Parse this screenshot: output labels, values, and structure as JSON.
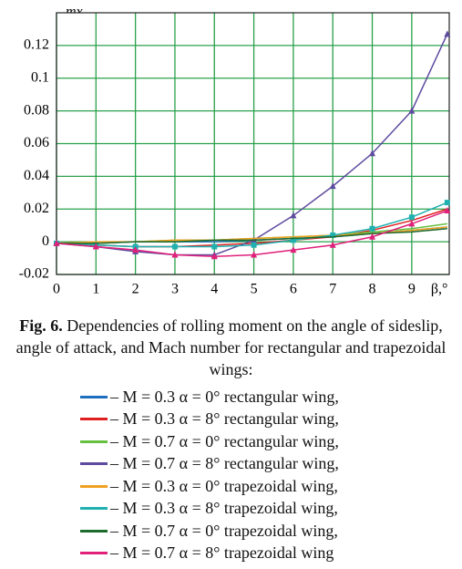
{
  "chart_data": {
    "type": "line",
    "y_label": "mx",
    "x_label": "β,°",
    "caption_label": "Fig. 6.",
    "caption": "Dependencies of rolling moment on the angle of sideslip, angle of attack, and Mach number for rectangular and trapezoidal wings:",
    "x": [
      0,
      1,
      2,
      3,
      4,
      5,
      6,
      7,
      8,
      9,
      9.9
    ],
    "xlim": [
      0,
      9.95
    ],
    "xticks": [
      0,
      1,
      2,
      3,
      4,
      5,
      6,
      7,
      8,
      9
    ],
    "ylim": [
      -0.02,
      0.14
    ],
    "yticks": [
      -0.02,
      0,
      0.02,
      0.04,
      0.06,
      0.08,
      0.1,
      0.12
    ],
    "grid": true,
    "grid_color": "#2aa04a",
    "series": [
      {
        "name": "– M = 0.3 α = 0° rectangular wing,",
        "color": "#1f6fbf",
        "values": [
          -0.001,
          -0.001,
          0,
          0,
          0,
          0.001,
          0.002,
          0.003,
          0.005,
          0.007,
          0.009
        ]
      },
      {
        "name": "– M = 0.3 α = 8° rectangular wing,",
        "color": "#e02020",
        "values": [
          -0.001,
          -0.002,
          -0.003,
          -0.003,
          -0.002,
          -0.001,
          0.001,
          0.003,
          0.007,
          0.013,
          0.02
        ]
      },
      {
        "name": "– M = 0.7 α = 0° rectangular wing,",
        "color": "#66c040",
        "values": [
          -0.001,
          -0.001,
          0,
          0.001,
          0.001,
          0.002,
          0.003,
          0.004,
          0.006,
          0.008,
          0.011
        ]
      },
      {
        "name": "– M = 0.7 α = 8° rectangular wing,",
        "color": "#5e4a9e",
        "marker": "triangle",
        "values": [
          -0.001,
          -0.003,
          -0.006,
          -0.008,
          -0.008,
          0.001,
          0.016,
          0.034,
          0.054,
          0.08,
          0.127
        ]
      },
      {
        "name": "– M = 0.3 α = 0° trapezoidal wing,",
        "color": "#f0a020",
        "values": [
          -0.001,
          0,
          0,
          0.001,
          0.001,
          0.002,
          0.003,
          0.004,
          0.005,
          0.007,
          0.009
        ]
      },
      {
        "name": "– M = 0.3 α = 8° trapezoidal wing,",
        "color": "#20b0b0",
        "marker": "square",
        "values": [
          -0.001,
          -0.002,
          -0.003,
          -0.003,
          -0.003,
          -0.002,
          0.001,
          0.004,
          0.008,
          0.015,
          0.024
        ]
      },
      {
        "name": "– M = 0.7 α = 0° trapezoidal wing,",
        "color": "#1e6b2e",
        "values": [
          -0.001,
          -0.001,
          0,
          0,
          0.001,
          0.001,
          0.002,
          0.003,
          0.005,
          0.006,
          0.008
        ]
      },
      {
        "name": "– M = 0.7 α = 8° trapezoidal wing",
        "color": "#e0207a",
        "marker": "triangle",
        "values": [
          -0.001,
          -0.003,
          -0.005,
          -0.008,
          -0.009,
          -0.008,
          -0.005,
          -0.002,
          0.003,
          0.011,
          0.019
        ]
      }
    ]
  }
}
